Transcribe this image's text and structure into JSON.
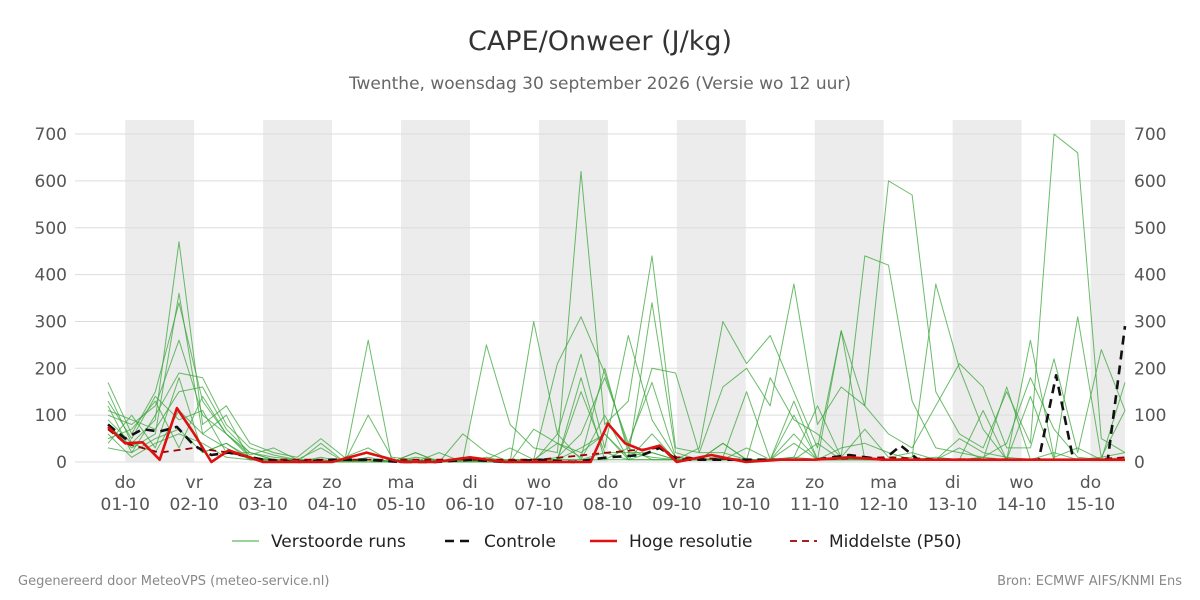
{
  "title": "CAPE/Onweer (J/kg)",
  "subtitle": "Twenthe, woensdag 30 september 2026 (Versie wo 12 uur)",
  "footer_left": "Gegenereerd door MeteoVPS (meteo-service.nl)",
  "footer_right": "Bron: ECMWF AIFS/KNMI Ens",
  "colors": {
    "ensemble": "#3aa63a",
    "control": "#111111",
    "hires": "#dd1111",
    "median": "#990000",
    "weekend_band": "#ececec",
    "grid": "#dddddd"
  },
  "chart_data": {
    "type": "line",
    "x_unit": "days since 01-10 00:00",
    "xlim": [
      -0.25,
      14.5
    ],
    "ylim": [
      0,
      730
    ],
    "y_ticks": [
      0,
      100,
      200,
      300,
      400,
      500,
      600,
      700
    ],
    "grid": true,
    "legend_position": "bottom",
    "x_ticks": [
      {
        "x": 0,
        "day": "do",
        "date": "01-10"
      },
      {
        "x": 1,
        "day": "vr",
        "date": "02-10"
      },
      {
        "x": 2,
        "day": "za",
        "date": "03-10"
      },
      {
        "x": 3,
        "day": "zo",
        "date": "04-10"
      },
      {
        "x": 4,
        "day": "ma",
        "date": "05-10"
      },
      {
        "x": 5,
        "day": "di",
        "date": "06-10"
      },
      {
        "x": 6,
        "day": "wo",
        "date": "07-10"
      },
      {
        "x": 7,
        "day": "do",
        "date": "08-10"
      },
      {
        "x": 8,
        "day": "vr",
        "date": "09-10"
      },
      {
        "x": 9,
        "day": "za",
        "date": "10-10"
      },
      {
        "x": 10,
        "day": "zo",
        "date": "11-10"
      },
      {
        "x": 11,
        "day": "ma",
        "date": "12-10"
      },
      {
        "x": 12,
        "day": "di",
        "date": "13-10"
      },
      {
        "x": 13,
        "day": "wo",
        "date": "14-10"
      },
      {
        "x": 14,
        "day": "do",
        "date": "15-10"
      }
    ],
    "shaded_bands": [
      [
        0,
        1
      ],
      [
        2,
        3
      ],
      [
        4,
        5
      ],
      [
        6,
        7
      ],
      [
        8,
        9
      ],
      [
        10,
        11
      ],
      [
        12,
        13
      ],
      [
        14,
        14.5
      ]
    ],
    "legend": [
      {
        "label": "Verstoorde runs",
        "style": "ensemble"
      },
      {
        "label": "Controle",
        "style": "control"
      },
      {
        "label": "Hoge resolutie",
        "style": "hires"
      },
      {
        "label": "Middelste (P50)",
        "style": "median"
      }
    ],
    "series": [
      {
        "name": "Hoge resolutie",
        "style": "hires",
        "x": [
          -0.25,
          0,
          0.25,
          0.5,
          0.75,
          1,
          1.25,
          1.5,
          2,
          2.5,
          3,
          3.5,
          4,
          4.5,
          5,
          5.5,
          6,
          6.5,
          6.75,
          7,
          7.25,
          7.5,
          7.75,
          8,
          8.5,
          9,
          9.5,
          10,
          10.5,
          11,
          11.5,
          12,
          12.5,
          13,
          13.5,
          14,
          14.5
        ],
        "y": [
          75,
          40,
          42,
          5,
          115,
          60,
          0,
          25,
          0,
          0,
          0,
          20,
          0,
          0,
          10,
          0,
          0,
          0,
          0,
          82,
          40,
          25,
          35,
          0,
          15,
          0,
          5,
          5,
          10,
          5,
          5,
          5,
          5,
          5,
          5,
          5,
          5
        ]
      },
      {
        "name": "Controle",
        "style": "control",
        "x": [
          -0.25,
          0,
          0.25,
          0.5,
          0.75,
          1,
          1.25,
          1.5,
          2,
          2.5,
          3,
          3.5,
          4,
          4.5,
          5,
          5.5,
          6,
          6.5,
          7,
          7.5,
          7.75,
          8,
          8.5,
          9,
          9.5,
          10,
          10.5,
          11,
          11.25,
          11.5,
          12,
          12.5,
          13,
          13.25,
          13.5,
          13.75,
          14,
          14.25,
          14.5
        ],
        "y": [
          80,
          50,
          70,
          65,
          75,
          35,
          15,
          20,
          5,
          0,
          5,
          5,
          0,
          0,
          5,
          0,
          5,
          0,
          10,
          15,
          30,
          5,
          5,
          5,
          5,
          5,
          15,
          5,
          35,
          5,
          5,
          5,
          5,
          5,
          185,
          5,
          5,
          5,
          290
        ]
      },
      {
        "name": "Middelste (P50)",
        "style": "median",
        "x": [
          -0.25,
          0,
          0.5,
          1,
          1.5,
          2,
          3,
          4,
          5,
          6,
          7,
          7.75,
          8,
          9,
          10,
          11,
          12,
          13,
          14,
          14.5
        ],
        "y": [
          70,
          40,
          20,
          30,
          20,
          5,
          5,
          5,
          5,
          5,
          20,
          30,
          10,
          5,
          5,
          10,
          5,
          5,
          5,
          10
        ]
      }
    ],
    "ensemble_members": [
      [
        170,
        60,
        150,
        340,
        130,
        60,
        20,
        10,
        5,
        30,
        0,
        260,
        0,
        20,
        0,
        5,
        250,
        80,
        30,
        20,
        620,
        80,
        130,
        440,
        30,
        20,
        160,
        200,
        120,
        380,
        80,
        160,
        120,
        600,
        570,
        150,
        60,
        30,
        150,
        40,
        700,
        660,
        50,
        20
      ],
      [
        150,
        40,
        90,
        470,
        80,
        120,
        40,
        20,
        10,
        50,
        10,
        30,
        0,
        10,
        5,
        0,
        5,
        5,
        5,
        40,
        10,
        200,
        20,
        20,
        5,
        30,
        300,
        210,
        270,
        150,
        30,
        280,
        120,
        60,
        30,
        120,
        210,
        160,
        30,
        30,
        220,
        20,
        240,
        110
      ],
      [
        100,
        80,
        120,
        260,
        100,
        60,
        10,
        5,
        0,
        10,
        0,
        100,
        10,
        5,
        0,
        60,
        20,
        0,
        300,
        60,
        230,
        30,
        270,
        90,
        10,
        5,
        40,
        5,
        180,
        90,
        60,
        10,
        440,
        420,
        130,
        30,
        20,
        10,
        40,
        180,
        70,
        10,
        5,
        170
      ],
      [
        80,
        30,
        60,
        360,
        60,
        30,
        5,
        5,
        0,
        0,
        0,
        5,
        0,
        5,
        0,
        10,
        0,
        0,
        5,
        210,
        310,
        190,
        30,
        200,
        190,
        20,
        20,
        5,
        5,
        10,
        120,
        10,
        10,
        5,
        10,
        380,
        200,
        70,
        5,
        260,
        10,
        30,
        5,
        10
      ],
      [
        120,
        20,
        100,
        190,
        180,
        80,
        30,
        15,
        5,
        5,
        0,
        0,
        5,
        0,
        20,
        0,
        10,
        0,
        70,
        40,
        20,
        60,
        10,
        340,
        20,
        5,
        10,
        150,
        5,
        40,
        5,
        30,
        40,
        20,
        5,
        5,
        50,
        20,
        10,
        5,
        20,
        5,
        10,
        20
      ],
      [
        60,
        10,
        40,
        60,
        40,
        10,
        5,
        0,
        0,
        40,
        0,
        0,
        5,
        0,
        0,
        5,
        0,
        5,
        5,
        5,
        150,
        20,
        20,
        10,
        5,
        5,
        5,
        5,
        5,
        130,
        5,
        5,
        10,
        5,
        5,
        10,
        5,
        110,
        5,
        140,
        5,
        310,
        10,
        110
      ],
      [
        40,
        100,
        30,
        180,
        20,
        40,
        10,
        5,
        5,
        0,
        5,
        0,
        0,
        0,
        5,
        0,
        5,
        0,
        0,
        10,
        60,
        180,
        40,
        170,
        10,
        5,
        5,
        30,
        5,
        100,
        5,
        10,
        70,
        10,
        20,
        5,
        5,
        10,
        5,
        5,
        5,
        5,
        5,
        5
      ],
      [
        130,
        50,
        140,
        90,
        110,
        20,
        20,
        5,
        0,
        5,
        0,
        5,
        0,
        20,
        0,
        5,
        5,
        30,
        5,
        5,
        5,
        20,
        5,
        20,
        5,
        5,
        5,
        5,
        5,
        10,
        5,
        280,
        5,
        5,
        5,
        5,
        30,
        5,
        160,
        5,
        5,
        5,
        5,
        5
      ],
      [
        90,
        40,
        20,
        110,
        60,
        100,
        5,
        5,
        0,
        0,
        5,
        0,
        0,
        5,
        0,
        0,
        0,
        0,
        0,
        60,
        5,
        5,
        5,
        60,
        5,
        5,
        40,
        5,
        5,
        5,
        5,
        5,
        5,
        5,
        5,
        5,
        5,
        5,
        5,
        5,
        5,
        5,
        5,
        5
      ],
      [
        50,
        70,
        130,
        30,
        140,
        60,
        15,
        30,
        5,
        5,
        0,
        5,
        0,
        5,
        0,
        5,
        0,
        5,
        0,
        5,
        30,
        60,
        5,
        5,
        5,
        5,
        5,
        5,
        5,
        60,
        5,
        5,
        5,
        5,
        5,
        5,
        5,
        5,
        5,
        5,
        5,
        5,
        5,
        5
      ],
      [
        30,
        20,
        50,
        70,
        20,
        40,
        5,
        5,
        0,
        0,
        0,
        10,
        0,
        0,
        0,
        5,
        0,
        5,
        5,
        5,
        5,
        100,
        5,
        5,
        5,
        5,
        5,
        5,
        5,
        5,
        5,
        5,
        10,
        5,
        5,
        5,
        5,
        5,
        5,
        5,
        5,
        5,
        5,
        5
      ],
      [
        110,
        90,
        70,
        150,
        160,
        70,
        20,
        5,
        5,
        0,
        5,
        0,
        0,
        5,
        0,
        0,
        0,
        0,
        5,
        5,
        180,
        5,
        30,
        5,
        5,
        5,
        5,
        5,
        5,
        5,
        40,
        5,
        5,
        5,
        5,
        5,
        5,
        5,
        5,
        5,
        5,
        5,
        5,
        5
      ]
    ]
  }
}
